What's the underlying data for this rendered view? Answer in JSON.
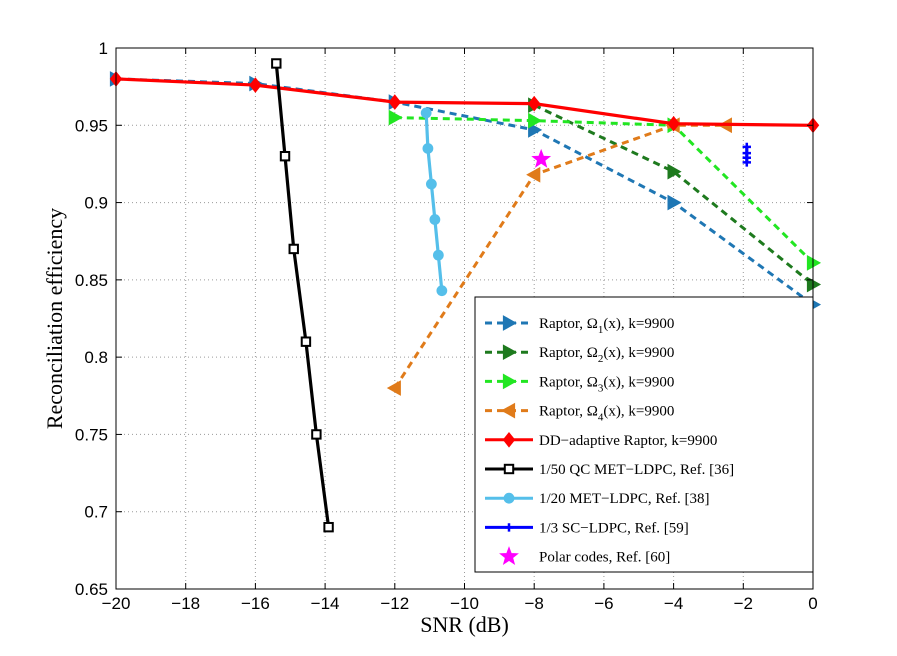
{
  "chart_data": {
    "type": "line",
    "title": "",
    "xlabel": "SNR (dB)",
    "ylabel": "Reconciliation efficiency",
    "xlim": [
      -20,
      0
    ],
    "ylim": [
      0.65,
      1.0
    ],
    "xticks": [
      -20,
      -18,
      -16,
      -14,
      -12,
      -10,
      -8,
      -6,
      -4,
      -2,
      0
    ],
    "yticks": [
      0.65,
      0.7,
      0.75,
      0.8,
      0.85,
      0.9,
      0.95,
      1.0
    ],
    "xtick_labels": [
      "−20",
      "−18",
      "−16",
      "−14",
      "−12",
      "−10",
      "−8",
      "−6",
      "−4",
      "−2",
      "0"
    ],
    "ytick_labels": [
      "0.65",
      "0.7",
      "0.75",
      "0.8",
      "0.85",
      "0.9",
      "0.95",
      "1"
    ],
    "grid": true,
    "legend_position": "bottom-right",
    "series": [
      {
        "name": "Raptor, Ω",
        "sub": "1",
        "suffix": "(x), k=9900",
        "color": "#1f77b4",
        "dash": true,
        "marker": "triangle-right",
        "x": [
          -20,
          -16,
          -12,
          -8,
          -4,
          0
        ],
        "y": [
          0.98,
          0.977,
          0.965,
          0.947,
          0.9,
          0.834
        ]
      },
      {
        "name": "Raptor, Ω",
        "sub": "2",
        "suffix": "(x), k=9900",
        "color": "#1e7a1e",
        "dash": true,
        "marker": "triangle-right",
        "x": [
          -8,
          -4,
          0
        ],
        "y": [
          0.963,
          0.92,
          0.847
        ]
      },
      {
        "name": "Raptor, Ω",
        "sub": "3",
        "suffix": "(x), k=9900",
        "color": "#22e622",
        "dash": true,
        "marker": "triangle-right",
        "x": [
          -12,
          -8,
          -4,
          0
        ],
        "y": [
          0.955,
          0.953,
          0.95,
          0.861
        ]
      },
      {
        "name": "Raptor, Ω",
        "sub": "4",
        "suffix": "(x), k=9900",
        "color": "#e07b1a",
        "dash": true,
        "marker": "triangle-left",
        "x": [
          -12,
          -8,
          -4,
          -2.5
        ],
        "y": [
          0.78,
          0.918,
          0.95,
          0.95
        ]
      },
      {
        "name": "DD−adaptive Raptor, k=9900",
        "sub": "",
        "suffix": "",
        "color": "#ff0000",
        "dash": false,
        "marker": "diamond",
        "x": [
          -20,
          -16,
          -12,
          -8,
          -4,
          0
        ],
        "y": [
          0.98,
          0.976,
          0.965,
          0.964,
          0.951,
          0.95
        ]
      },
      {
        "name": "1/50 QC MET−LDPC, Ref. [36]",
        "sub": "",
        "suffix": "",
        "color": "#000000",
        "dash": false,
        "marker": "square",
        "x": [
          -15.4,
          -15.15,
          -14.9,
          -14.55,
          -14.25,
          -13.9
        ],
        "y": [
          0.99,
          0.93,
          0.87,
          0.81,
          0.75,
          0.69
        ]
      },
      {
        "name": "1/20 MET−LDPC, Ref. [38]",
        "sub": "",
        "suffix": "",
        "color": "#55bfea",
        "dash": false,
        "marker": "circle",
        "x": [
          -11.1,
          -11.05,
          -10.95,
          -10.85,
          -10.75,
          -10.65
        ],
        "y": [
          0.958,
          0.935,
          0.912,
          0.889,
          0.866,
          0.843
        ]
      },
      {
        "name": "1/3 SC−LDPC, Ref. [59]",
        "sub": "",
        "suffix": "",
        "color": "#0000ff",
        "dash": false,
        "marker": "plus",
        "x": [
          -1.9,
          -1.9,
          -1.9,
          -1.9
        ],
        "y": [
          0.936,
          0.932,
          0.929,
          0.926
        ]
      },
      {
        "name": "Polar codes, Ref. [60]",
        "sub": "",
        "suffix": "",
        "color": "#ff00ff",
        "dash": false,
        "marker": "star",
        "noline": true,
        "x": [
          -7.8
        ],
        "y": [
          0.928
        ]
      }
    ]
  }
}
